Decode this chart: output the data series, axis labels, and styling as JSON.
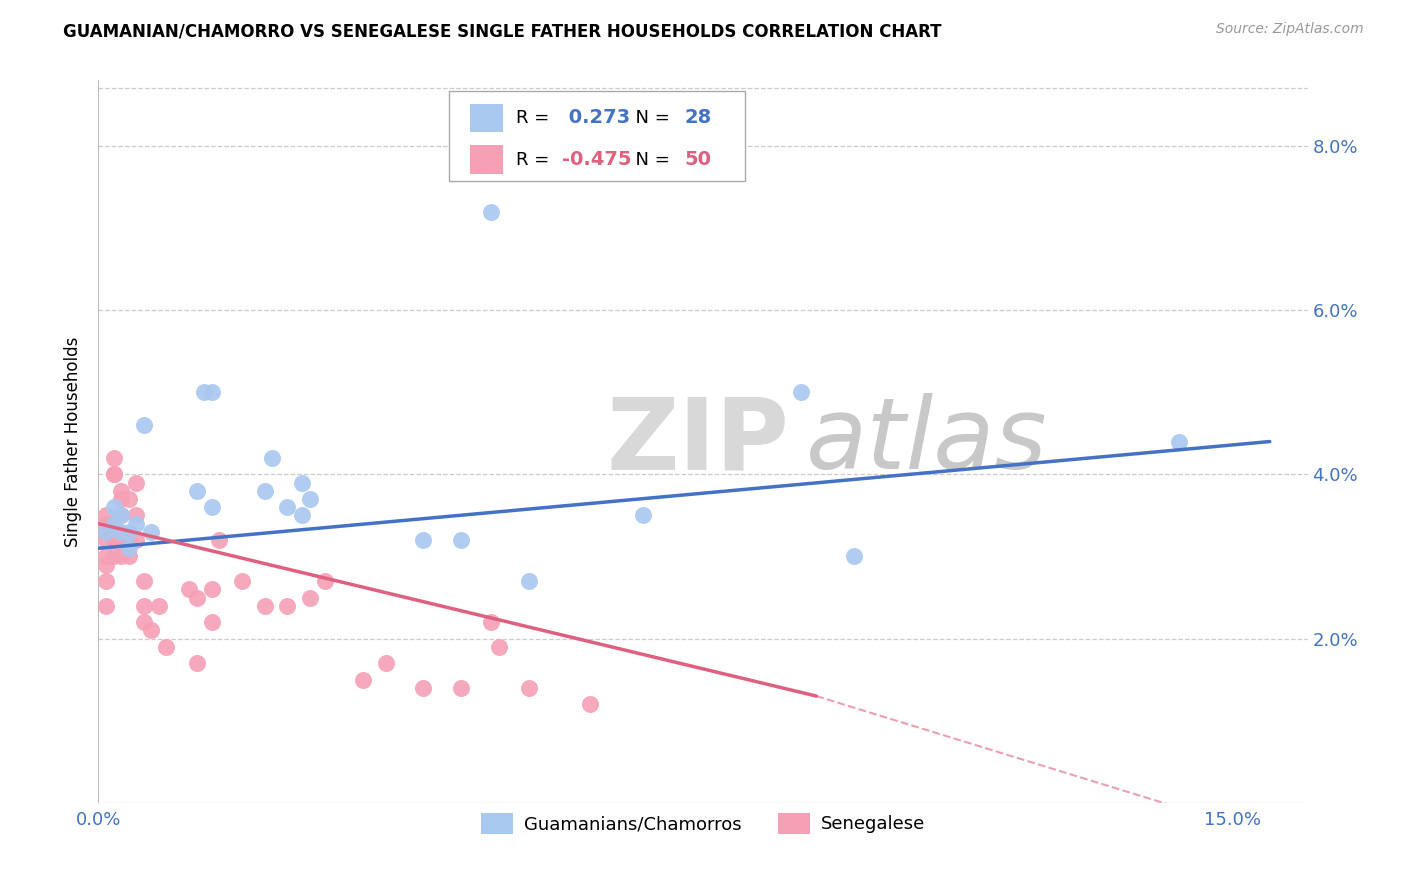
{
  "title": "GUAMANIAN/CHAMORRO VS SENEGALESE SINGLE FATHER HOUSEHOLDS CORRELATION CHART",
  "source": "Source: ZipAtlas.com",
  "ylabel": "Single Father Households",
  "xlim": [
    0.0,
    0.16
  ],
  "ylim": [
    0.0,
    0.088
  ],
  "blue_color": "#A8C8F0",
  "pink_color": "#F5A0B5",
  "blue_line_color": "#4472C4",
  "pink_line_color": "#E06080",
  "legend_R1": "0.273",
  "legend_N1": "28",
  "legend_R2": "-0.475",
  "legend_N2": "50",
  "legend_label1": "Guamanians/Chamorros",
  "legend_label2": "Senegalese",
  "blue_points_x": [
    0.001,
    0.002,
    0.002,
    0.003,
    0.003,
    0.004,
    0.004,
    0.005,
    0.006,
    0.007,
    0.013,
    0.014,
    0.015,
    0.015,
    0.022,
    0.023,
    0.025,
    0.027,
    0.027,
    0.028,
    0.043,
    0.048,
    0.052,
    0.057,
    0.072,
    0.093,
    0.1,
    0.143
  ],
  "blue_points_y": [
    0.033,
    0.034,
    0.036,
    0.033,
    0.035,
    0.031,
    0.033,
    0.034,
    0.046,
    0.033,
    0.038,
    0.05,
    0.05,
    0.036,
    0.038,
    0.042,
    0.036,
    0.035,
    0.039,
    0.037,
    0.032,
    0.032,
    0.072,
    0.027,
    0.035,
    0.05,
    0.03,
    0.044
  ],
  "pink_points_x": [
    0.001,
    0.001,
    0.001,
    0.001,
    0.001,
    0.001,
    0.001,
    0.001,
    0.002,
    0.002,
    0.002,
    0.002,
    0.002,
    0.002,
    0.003,
    0.003,
    0.003,
    0.003,
    0.003,
    0.004,
    0.004,
    0.004,
    0.005,
    0.005,
    0.005,
    0.006,
    0.006,
    0.006,
    0.007,
    0.008,
    0.009,
    0.012,
    0.013,
    0.013,
    0.015,
    0.015,
    0.016,
    0.019,
    0.022,
    0.025,
    0.028,
    0.03,
    0.035,
    0.038,
    0.043,
    0.048,
    0.052,
    0.053,
    0.057,
    0.065
  ],
  "pink_points_y": [
    0.033,
    0.035,
    0.034,
    0.03,
    0.032,
    0.029,
    0.027,
    0.024,
    0.04,
    0.042,
    0.04,
    0.034,
    0.032,
    0.03,
    0.038,
    0.037,
    0.035,
    0.032,
    0.03,
    0.037,
    0.032,
    0.03,
    0.039,
    0.035,
    0.032,
    0.027,
    0.024,
    0.022,
    0.021,
    0.024,
    0.019,
    0.026,
    0.025,
    0.017,
    0.026,
    0.022,
    0.032,
    0.027,
    0.024,
    0.024,
    0.025,
    0.027,
    0.015,
    0.017,
    0.014,
    0.014,
    0.022,
    0.019,
    0.014,
    0.012
  ],
  "blue_trend_x": [
    0.0,
    0.155
  ],
  "blue_trend_y": [
    0.031,
    0.044
  ],
  "pink_trend_x": [
    0.0,
    0.095
  ],
  "pink_trend_y": [
    0.034,
    0.013
  ]
}
